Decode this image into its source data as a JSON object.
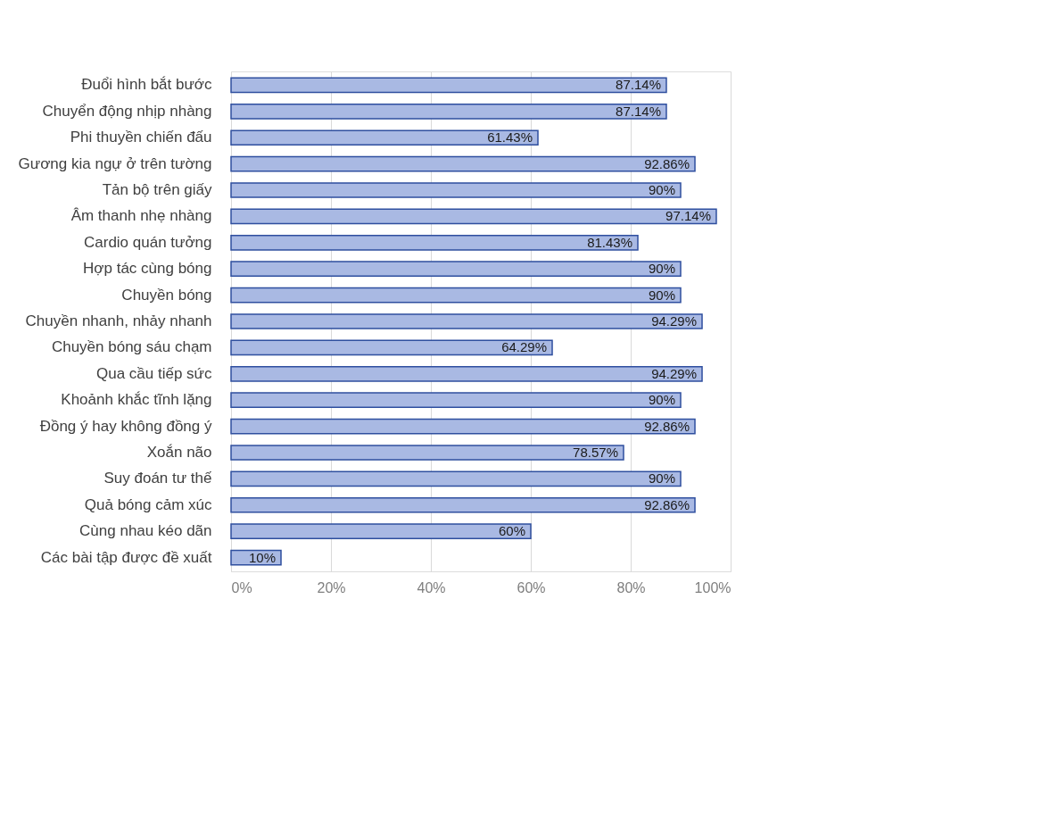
{
  "chart_data": {
    "type": "bar",
    "orientation": "horizontal",
    "categories": [
      "Đuổi hình bắt bước",
      "Chuyển động nhịp nhàng",
      "Phi thuyền chiến đấu",
      "Gương kia ngự ở trên tường",
      "Tản bộ trên giấy",
      "Âm thanh nhẹ nhàng",
      "Cardio quán tưởng",
      "Hợp tác cùng bóng",
      "Chuyền bóng",
      "Chuyền nhanh, nhảy nhanh",
      "Chuyền bóng sáu chạm",
      "Qua cầu tiếp sức",
      "Khoảnh khắc tĩnh lặng",
      "Đồng ý hay không đồng ý",
      "Xoắn não",
      "Suy đoán tư thế",
      "Quả bóng cảm xúc",
      "Cùng nhau kéo dãn",
      "Các bài tập được đề xuất"
    ],
    "values": [
      87.14,
      87.14,
      61.43,
      92.86,
      90,
      97.14,
      81.43,
      90,
      90,
      94.29,
      64.29,
      94.29,
      90,
      92.86,
      78.57,
      90,
      92.86,
      60,
      10
    ],
    "value_labels": [
      "87.14%",
      "87.14%",
      "61.43%",
      "92.86%",
      "90%",
      "97.14%",
      "81.43%",
      "90%",
      "90%",
      "94.29%",
      "64.29%",
      "94.29%",
      "90%",
      "92.86%",
      "78.57%",
      "90%",
      "92.86%",
      "60%",
      "10%"
    ],
    "color": "#a9b9e3",
    "xlim": [
      0,
      100
    ],
    "xticks": [
      {
        "value": 0,
        "label": "0%"
      },
      {
        "value": 20,
        "label": "20%"
      },
      {
        "value": 40,
        "label": "40%"
      },
      {
        "value": 60,
        "label": "60%"
      },
      {
        "value": 80,
        "label": "80%"
      },
      {
        "value": 100,
        "label": "100%"
      }
    ],
    "grid": "x"
  }
}
